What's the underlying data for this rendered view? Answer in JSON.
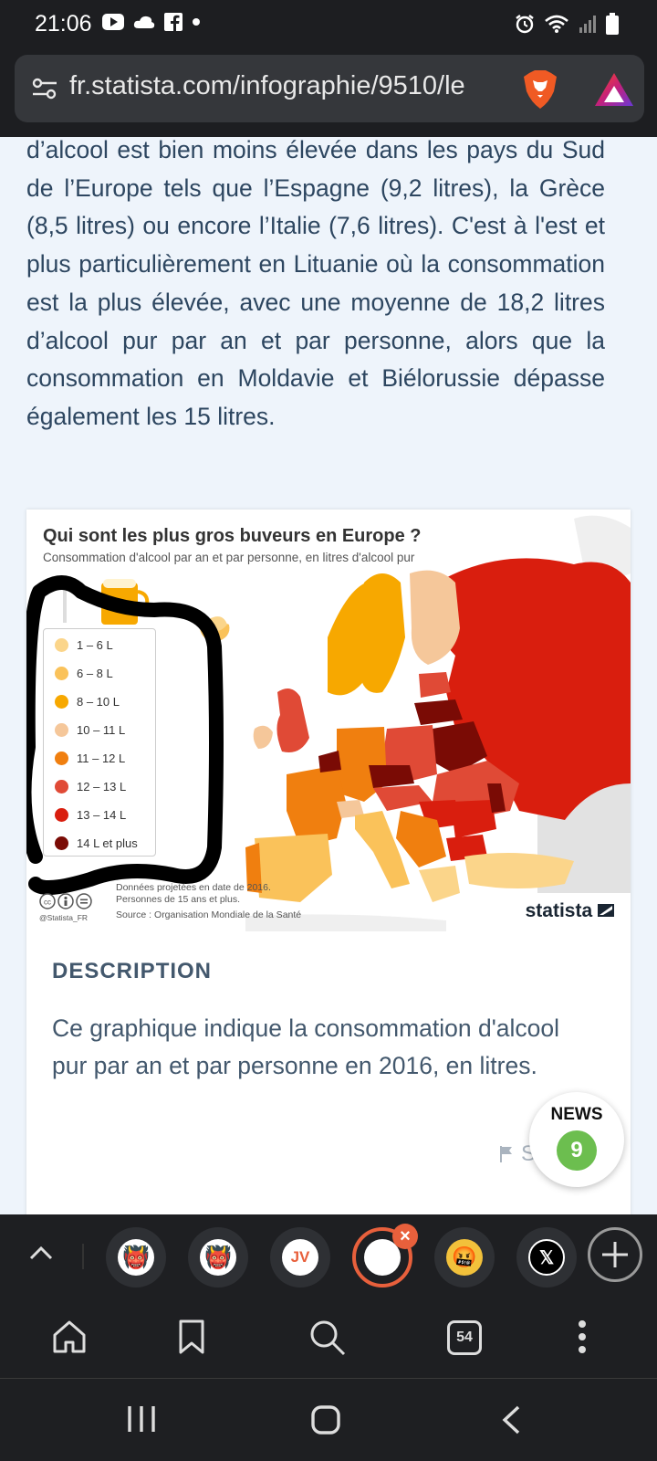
{
  "status_bar": {
    "time": "21:06",
    "left_icons": [
      "youtube-icon",
      "cloud-icon",
      "facebook-icon",
      "dot-icon"
    ],
    "right_icons": [
      "alarm-icon",
      "wifi-icon",
      "signal-icon",
      "battery-icon"
    ]
  },
  "address_bar": {
    "url": "fr.statista.com/infographie/9510/le",
    "icons": [
      "site-settings-icon",
      "brave-shields-icon",
      "brave-rewards-icon"
    ]
  },
  "article": {
    "paragraph": "d’alcool est bien moins élevée dans les pays du Sud de l’Europe tels que l’Espagne (9,2 litres), la Grèce (8,5 litres) ou encore l’Italie (7,6 litres). C'est à l'est et plus particulièrement en Lituanie où la consommation est la plus élevée, avec une moyenne de 18,2 litres d’alcool pur par an et par personne, alors que la consommation en Moldavie et Biélorussie dépasse également les 15 litres."
  },
  "infographic": {
    "title": "Qui sont les plus gros buveurs en Europe ?",
    "subtitle": "Consommation d'alcool par an et par personne, en litres d'alcool pur",
    "legend": [
      {
        "label": "1 – 6 L",
        "color": "#fbd58a"
      },
      {
        "label": "6 – 8 L",
        "color": "#fac25a"
      },
      {
        "label": "8 – 10 L",
        "color": "#f7a800"
      },
      {
        "label": "10 – 11 L",
        "color": "#f5c79a"
      },
      {
        "label": "11 – 12 L",
        "color": "#f07f0f"
      },
      {
        "label": "12 – 13 L",
        "color": "#e04a36"
      },
      {
        "label": "13 – 14 L",
        "color": "#d91e0e"
      },
      {
        "label": "14 L et plus",
        "color": "#7a0b05"
      }
    ],
    "note_1": "Données projetées en date de 2016.",
    "note_2": "Personnes de 15 ans et plus.",
    "source": "Source : Organisation Mondiale de la Santé",
    "handle": "@Statista_FR",
    "brand": "statista"
  },
  "description": {
    "heading": "DESCRIPTION",
    "text": "Ce graphique indique la consommation d'alcool pur par an et par personne en 2016, en litres.",
    "report_label": "Signaler"
  },
  "news_badge": {
    "label": "NEWS",
    "count": "9"
  },
  "tab_strip": {
    "tabs": [
      {
        "name": "tab-goblin-1",
        "glyph": "👹"
      },
      {
        "name": "tab-goblin-2",
        "glyph": "👹"
      },
      {
        "name": "tab-jv",
        "glyph": "JV"
      },
      {
        "name": "tab-current",
        "glyph": ""
      },
      {
        "name": "tab-emoji",
        "glyph": "🤬"
      },
      {
        "name": "tab-x",
        "glyph": "𝕏"
      }
    ]
  },
  "toolbar": {
    "tab_count": "54"
  },
  "colors": {
    "accent": "#e8603c",
    "text": "#2d4660",
    "news_green": "#6cbe4f"
  }
}
